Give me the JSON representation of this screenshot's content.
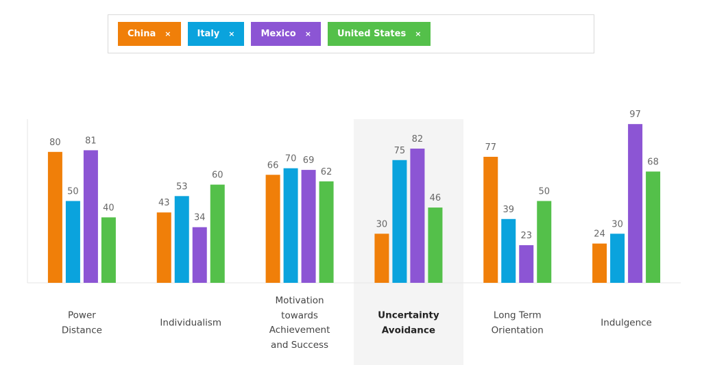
{
  "chart_data": {
    "type": "bar",
    "categories": [
      "Power Distance",
      "Individualism",
      "Motivation towards Achievement and Success",
      "Uncertainty Avoidance",
      "Long Term Orientation",
      "Indulgence"
    ],
    "series": [
      {
        "name": "China",
        "color": "#f07f09",
        "values": [
          80,
          43,
          66,
          30,
          77,
          24
        ]
      },
      {
        "name": "Italy",
        "color": "#0aa3dd",
        "values": [
          50,
          53,
          70,
          75,
          39,
          30
        ]
      },
      {
        "name": "Mexico",
        "color": "#8c55d4",
        "values": [
          81,
          34,
          69,
          82,
          23,
          97
        ]
      },
      {
        "name": "United States",
        "color": "#54c04a",
        "values": [
          40,
          60,
          62,
          46,
          50,
          68
        ]
      }
    ],
    "legend_remove": "×",
    "highlight": 3,
    "ylim": [
      0,
      100
    ]
  }
}
